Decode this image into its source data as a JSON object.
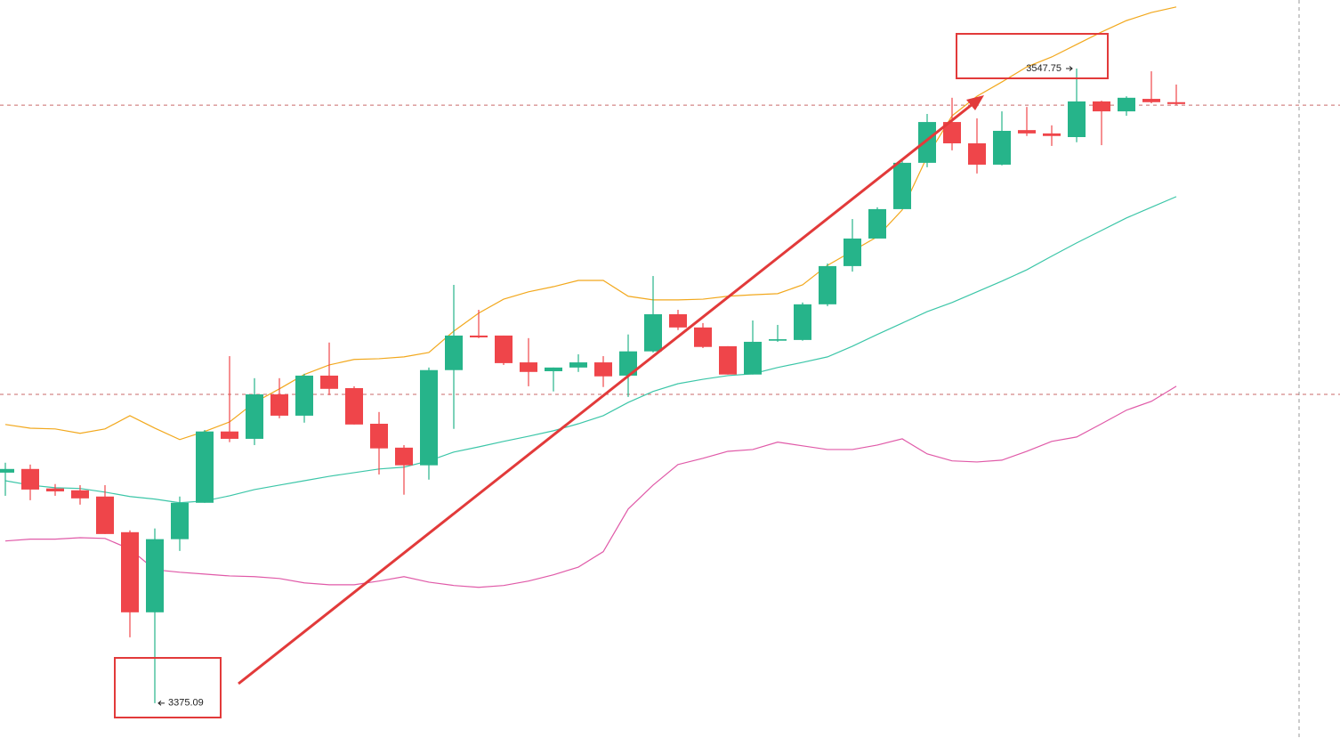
{
  "chart_data": {
    "type": "candlestick",
    "up_color": "#26b48a",
    "down_color": "#ef454a",
    "ylim": [
      3365.6,
      3566.4
    ],
    "hlines": [
      3537.8,
      3459.1
    ],
    "open": [
      3437.8,
      3438.8,
      3433.5,
      3433.0,
      3431.3,
      3421.6,
      3399.8,
      3419.7,
      3429.6,
      3449.0,
      3447.0,
      3459.1,
      3453.3,
      3464.2,
      3460.8,
      3451.1,
      3444.6,
      3439.8,
      3465.7,
      3475.1,
      3475.1,
      3467.8,
      3465.4,
      3466.4,
      3467.8,
      3464.2,
      3470.8,
      3480.9,
      3477.3,
      3472.2,
      3464.5,
      3473.7,
      3473.9,
      3483.6,
      3494.0,
      3501.5,
      3509.5,
      3522.1,
      3533.2,
      3527.4,
      3521.6,
      3531.0,
      3530.1,
      3529.1,
      3538.8,
      3536.1,
      3539.5,
      3538.6
    ],
    "high": [
      3440.5,
      3440.0,
      3434.7,
      3434.4,
      3434.4,
      3422.1,
      3422.6,
      3431.3,
      3449.4,
      3469.5,
      3463.5,
      3463.5,
      3464.7,
      3473.2,
      3461.3,
      3454.3,
      3445.3,
      3466.4,
      3488.9,
      3482.1,
      3475.1,
      3474.4,
      3466.4,
      3470.0,
      3469.5,
      3475.4,
      3491.3,
      3482.1,
      3478.5,
      3472.2,
      3479.2,
      3478.0,
      3484.1,
      3494.7,
      3506.8,
      3510.0,
      3522.8,
      3535.4,
      3539.8,
      3534.2,
      3536.1,
      3537.3,
      3532.3,
      3547.75,
      3539.0,
      3540.2,
      3547.0,
      3543.4
    ],
    "low": [
      3431.5,
      3430.3,
      3431.5,
      3429.1,
      3421.1,
      3393.0,
      3375.09,
      3416.5,
      3429.6,
      3446.1,
      3445.3,
      3452.6,
      3451.4,
      3458.9,
      3450.9,
      3437.3,
      3431.8,
      3435.9,
      3449.7,
      3474.4,
      3467.1,
      3461.3,
      3459.9,
      3465.2,
      3461.1,
      3458.4,
      3470.5,
      3476.6,
      3471.7,
      3464.5,
      3464.5,
      3473.4,
      3473.7,
      3483.1,
      3492.5,
      3501.5,
      3509.5,
      3520.9,
      3525.5,
      3519.2,
      3521.4,
      3529.4,
      3526.7,
      3527.7,
      3526.9,
      3534.9,
      3538.3,
      3537.8
    ],
    "close": [
      3438.8,
      3433.2,
      3432.7,
      3430.8,
      3421.1,
      3399.8,
      3419.7,
      3429.6,
      3449.0,
      3447.0,
      3459.1,
      3453.3,
      3464.2,
      3460.6,
      3450.9,
      3444.4,
      3439.8,
      3465.7,
      3475.1,
      3474.6,
      3467.6,
      3465.2,
      3466.4,
      3467.8,
      3464.0,
      3470.8,
      3480.9,
      3477.3,
      3472.0,
      3464.5,
      3473.4,
      3474.1,
      3483.6,
      3494.0,
      3501.5,
      3509.5,
      3522.1,
      3533.2,
      3527.4,
      3521.6,
      3530.8,
      3530.1,
      3529.4,
      3538.8,
      3536.1,
      3539.8,
      3538.6,
      3538.1
    ],
    "lines": [
      {
        "color": "#f2a81d",
        "values": [
          3450.9,
          3449.9,
          3449.7,
          3448.5,
          3449.7,
          3453.3,
          3449.9,
          3446.8,
          3449.0,
          3451.6,
          3456.9,
          3460.6,
          3464.5,
          3467.1,
          3468.6,
          3468.8,
          3469.3,
          3470.5,
          3476.3,
          3481.2,
          3485.0,
          3487.0,
          3488.4,
          3490.1,
          3490.1,
          3485.8,
          3484.8,
          3484.8,
          3485.0,
          3485.8,
          3486.2,
          3486.5,
          3488.9,
          3494.2,
          3498.1,
          3502.0,
          3509.3,
          3523.8,
          3534.9,
          3540.2,
          3544.1,
          3548.2,
          3550.9,
          3554.3,
          3557.7,
          3560.8,
          3563.0,
          3564.5
        ]
      },
      {
        "color": "#3cc6a8",
        "values": [
          3435.6,
          3434.4,
          3433.7,
          3433.5,
          3432.5,
          3431.3,
          3430.6,
          3429.6,
          3430.1,
          3431.5,
          3433.2,
          3434.4,
          3435.6,
          3436.8,
          3437.8,
          3438.8,
          3439.3,
          3441.0,
          3443.4,
          3444.8,
          3446.3,
          3447.7,
          3449.2,
          3451.1,
          3453.3,
          3456.9,
          3459.9,
          3462.0,
          3463.2,
          3464.2,
          3464.7,
          3466.4,
          3467.8,
          3469.3,
          3472.2,
          3475.4,
          3478.5,
          3481.6,
          3484.1,
          3487.0,
          3489.9,
          3493.0,
          3496.7,
          3500.3,
          3503.7,
          3507.1,
          3510.0,
          3512.9
        ]
      },
      {
        "color": "#e05aa8",
        "values": [
          3419.2,
          3419.7,
          3419.7,
          3420.1,
          3419.9,
          3417.0,
          3411.4,
          3410.7,
          3410.2,
          3409.7,
          3409.5,
          3409.0,
          3407.8,
          3407.3,
          3407.3,
          3408.3,
          3409.5,
          3408.0,
          3407.1,
          3406.6,
          3407.1,
          3408.3,
          3410.0,
          3412.1,
          3416.3,
          3427.9,
          3434.4,
          3440.0,
          3441.7,
          3443.6,
          3444.1,
          3446.1,
          3445.1,
          3444.1,
          3444.1,
          3445.3,
          3447.0,
          3442.9,
          3441.0,
          3440.7,
          3441.2,
          3443.6,
          3446.3,
          3447.5,
          3451.1,
          3454.8,
          3457.2,
          3461.3
        ]
      }
    ]
  }
}
